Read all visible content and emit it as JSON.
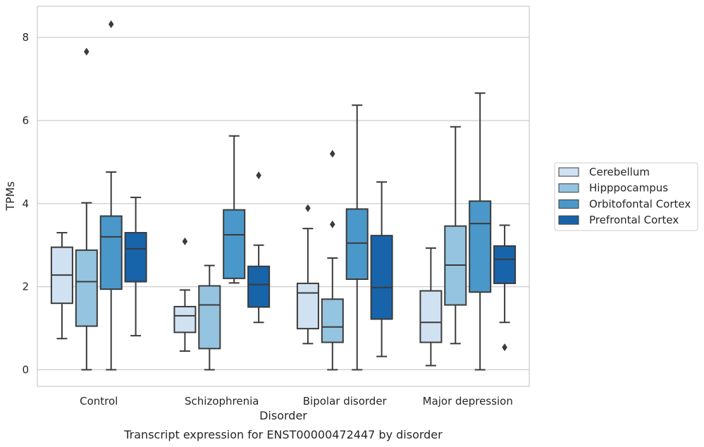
{
  "chart_data": {
    "type": "box",
    "title": "",
    "caption": "Transcript expression for ENST00000472447 by disorder",
    "xlabel": "Disorder",
    "ylabel": "TPMs",
    "ylim": [
      -0.4,
      8.75
    ],
    "yticks": [
      0,
      2,
      4,
      6,
      8
    ],
    "grid": "horizontal",
    "legend_position": "right",
    "categories": [
      "Control",
      "Schizophrenia",
      "Bipolar disorder",
      "Major depression"
    ],
    "series": [
      {
        "name": "Cerebellum",
        "color": "#d0e1f2",
        "boxes": [
          {
            "whisker_low": 0.75,
            "q1": 1.6,
            "median": 2.28,
            "q3": 2.95,
            "whisker_high": 3.3,
            "outliers": []
          },
          {
            "whisker_low": 0.45,
            "q1": 0.9,
            "median": 1.3,
            "q3": 1.52,
            "whisker_high": 1.92,
            "outliers": [
              3.09
            ]
          },
          {
            "whisker_low": 0.63,
            "q1": 0.99,
            "median": 1.85,
            "q3": 2.08,
            "whisker_high": 3.4,
            "outliers": [
              3.89
            ]
          },
          {
            "whisker_low": 0.1,
            "q1": 0.66,
            "median": 1.14,
            "q3": 1.9,
            "whisker_high": 2.93,
            "outliers": []
          }
        ]
      },
      {
        "name": "Hipppocampus",
        "color": "#94c4df",
        "boxes": [
          {
            "whisker_low": 0.0,
            "q1": 1.05,
            "median": 2.12,
            "q3": 2.88,
            "whisker_high": 4.02,
            "outliers": [
              7.66
            ]
          },
          {
            "whisker_low": 0.0,
            "q1": 0.51,
            "median": 1.56,
            "q3": 2.02,
            "whisker_high": 2.51,
            "outliers": []
          },
          {
            "whisker_low": 0.0,
            "q1": 0.66,
            "median": 1.03,
            "q3": 1.7,
            "whisker_high": 2.69,
            "outliers": [
              3.5,
              5.2
            ]
          },
          {
            "whisker_low": 0.63,
            "q1": 1.56,
            "median": 2.52,
            "q3": 3.46,
            "whisker_high": 5.85,
            "outliers": []
          }
        ]
      },
      {
        "name": "Orbitofontal Cortex",
        "color": "#4a98c9",
        "boxes": [
          {
            "whisker_low": 0.0,
            "q1": 1.94,
            "median": 3.2,
            "q3": 3.7,
            "whisker_high": 4.76,
            "outliers": [
              8.32
            ]
          },
          {
            "whisker_low": 2.09,
            "q1": 2.2,
            "median": 3.25,
            "q3": 3.85,
            "whisker_high": 5.63,
            "outliers": []
          },
          {
            "whisker_low": 0.0,
            "q1": 2.18,
            "median": 3.05,
            "q3": 3.87,
            "whisker_high": 6.37,
            "outliers": []
          },
          {
            "whisker_low": 0.0,
            "q1": 1.87,
            "median": 3.52,
            "q3": 4.06,
            "whisker_high": 6.66,
            "outliers": []
          }
        ]
      },
      {
        "name": "Prefrontal Cortex",
        "color": "#1764ab",
        "boxes": [
          {
            "whisker_low": 0.82,
            "q1": 2.12,
            "median": 2.91,
            "q3": 3.3,
            "whisker_high": 4.15,
            "outliers": []
          },
          {
            "whisker_low": 1.14,
            "q1": 1.51,
            "median": 2.05,
            "q3": 2.49,
            "whisker_high": 3.0,
            "outliers": [
              4.68
            ]
          },
          {
            "whisker_low": 0.32,
            "q1": 1.22,
            "median": 1.98,
            "q3": 3.23,
            "whisker_high": 4.52,
            "outliers": []
          },
          {
            "whisker_low": 1.14,
            "q1": 2.08,
            "median": 2.66,
            "q3": 2.98,
            "whisker_high": 3.48,
            "outliers": [
              0.54
            ]
          }
        ]
      }
    ]
  }
}
